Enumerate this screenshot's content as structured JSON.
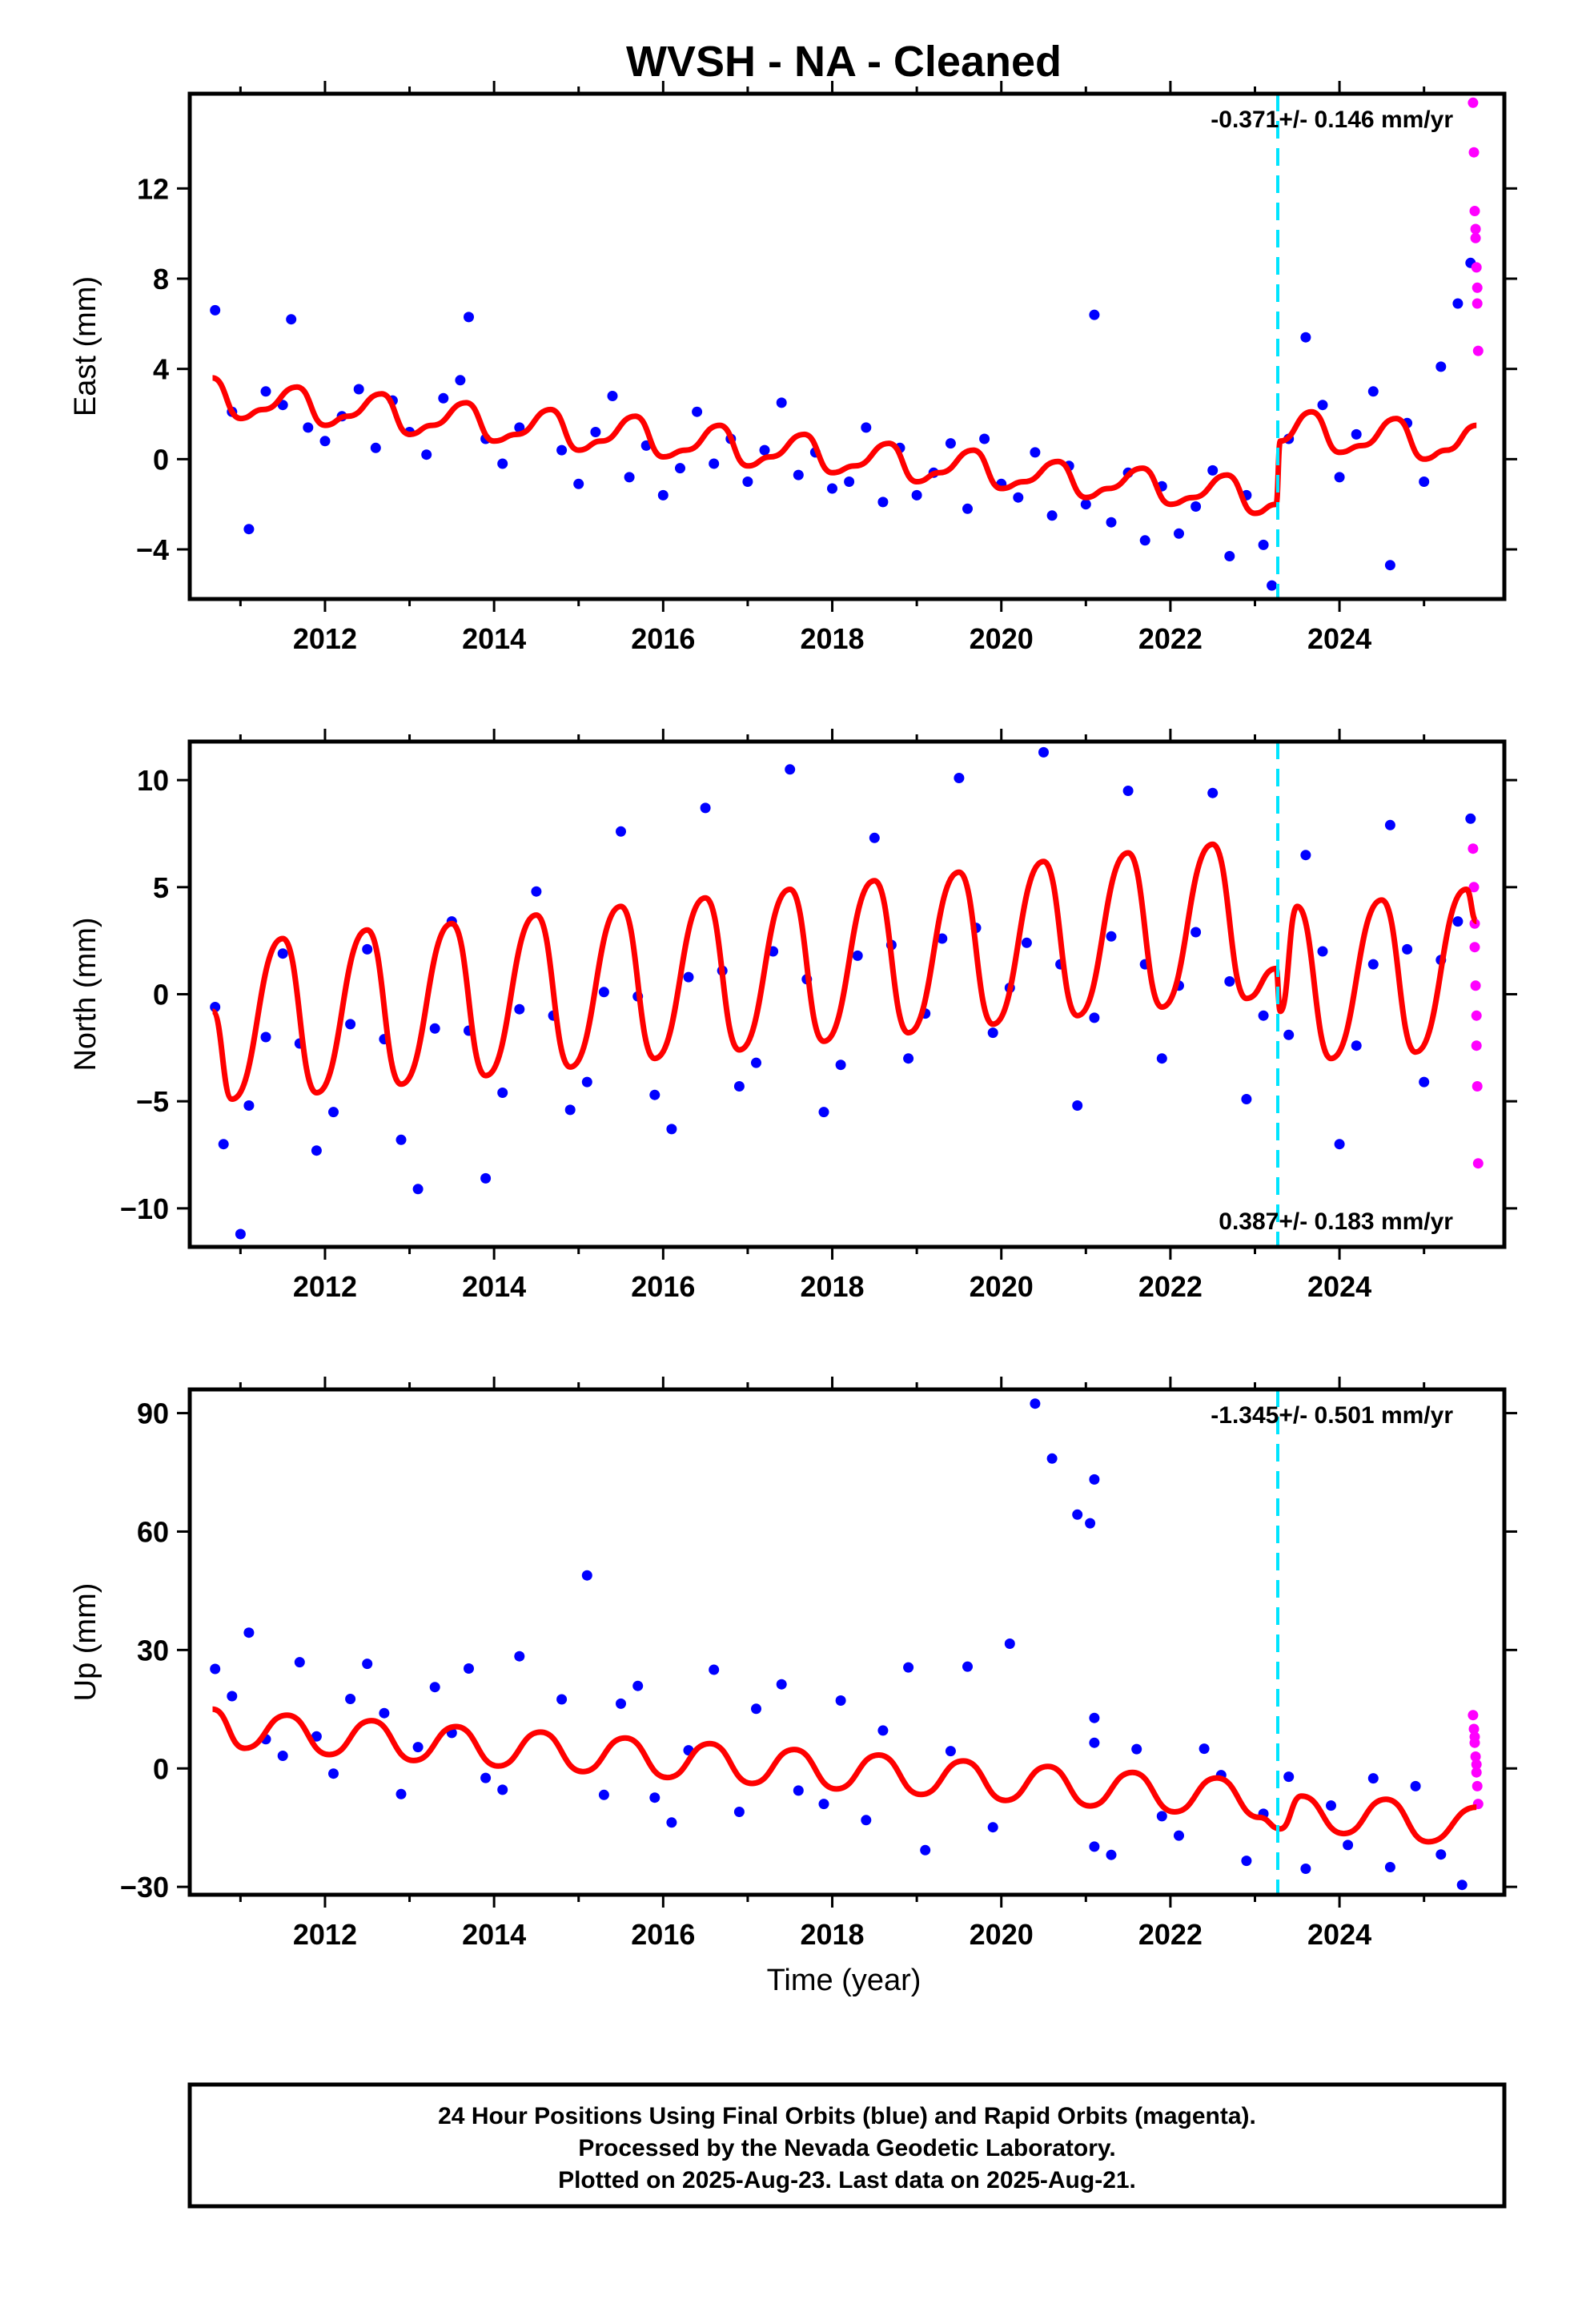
{
  "title": "WVSH  - NA - Cleaned",
  "colors": {
    "final_orbits": "#0000ff",
    "rapid_orbits": "#ff00ff",
    "model_fit": "#ff0000",
    "offset_marker": "#00e5ff"
  },
  "x_axis": {
    "label": "Time (year)",
    "range": [
      2010.4,
      2025.95
    ],
    "ticks": [
      "2012",
      "2014",
      "2016",
      "2018",
      "2020",
      "2022",
      "2024"
    ]
  },
  "note": {
    "lines": [
      "24 Hour Positions Using Final Orbits (blue) and Rapid Orbits (magenta).",
      "Processed by the Nevada Geodetic Laboratory.",
      "Plotted on 2025-Aug-23. Last data on 2025-Aug-21."
    ]
  },
  "chart_data": [
    {
      "type": "scatter",
      "name": "east",
      "ylabel": "East (mm)",
      "ylim": [
        -6.2,
        16.2
      ],
      "yticks": [
        "−4",
        "0",
        "4",
        "8",
        "12"
      ],
      "rate_text": "-0.371+/- 0.146 mm/yr",
      "rate_position": "top-right",
      "offset_line_year": 2023.27,
      "series": [
        {
          "name": "fit",
          "style": "line",
          "x": [
            2010.67,
            2011.0,
            2011.27,
            2011.67,
            2012.0,
            2012.27,
            2012.67,
            2013.0,
            2013.27,
            2013.67,
            2014.0,
            2014.27,
            2014.67,
            2015.0,
            2015.27,
            2015.67,
            2016.0,
            2016.27,
            2016.67,
            2017.0,
            2017.27,
            2017.67,
            2018.0,
            2018.27,
            2018.67,
            2019.0,
            2019.27,
            2019.67,
            2020.0,
            2020.27,
            2020.67,
            2021.0,
            2021.27,
            2021.67,
            2022.0,
            2022.27,
            2022.67,
            2023.0,
            2023.25,
            2023.3,
            2023.67,
            2024.0,
            2024.27,
            2024.67,
            2025.0,
            2025.27,
            2025.62
          ],
          "y": [
            3.6,
            1.8,
            2.2,
            3.2,
            1.5,
            1.9,
            2.9,
            1.1,
            1.5,
            2.5,
            0.8,
            1.1,
            2.2,
            0.4,
            0.8,
            1.9,
            0.1,
            0.4,
            1.5,
            -0.3,
            0.1,
            1.1,
            -0.6,
            -0.3,
            0.7,
            -1.0,
            -0.6,
            0.4,
            -1.3,
            -1.0,
            -0.1,
            -1.7,
            -1.3,
            -0.4,
            -2.0,
            -1.7,
            -0.7,
            -2.4,
            -2.0,
            0.8,
            2.1,
            0.3,
            0.6,
            1.8,
            0.0,
            0.4,
            1.5
          ]
        },
        {
          "name": "final",
          "style": "points",
          "x": [
            2010.7,
            2010.9,
            2011.1,
            2011.3,
            2011.5,
            2011.6,
            2011.8,
            2012.0,
            2012.2,
            2012.4,
            2012.6,
            2012.8,
            2013.0,
            2013.2,
            2013.4,
            2013.6,
            2013.7,
            2013.9,
            2014.1,
            2014.3,
            2014.8,
            2015.0,
            2015.2,
            2015.4,
            2015.6,
            2015.8,
            2016.0,
            2016.2,
            2016.4,
            2016.6,
            2016.8,
            2017.0,
            2017.2,
            2017.4,
            2017.6,
            2017.8,
            2018.0,
            2018.2,
            2018.4,
            2018.6,
            2018.8,
            2019.0,
            2019.2,
            2019.4,
            2019.6,
            2019.8,
            2020.0,
            2020.2,
            2020.4,
            2020.6,
            2020.8,
            2021.0,
            2021.1,
            2021.3,
            2021.5,
            2021.7,
            2021.9,
            2022.1,
            2022.3,
            2022.5,
            2022.7,
            2022.9,
            2023.1,
            2023.2,
            2023.4,
            2023.6,
            2023.8,
            2024.0,
            2024.2,
            2024.4,
            2024.6,
            2024.8,
            2025.0,
            2025.2,
            2025.4,
            2025.55
          ],
          "y": [
            6.6,
            2.1,
            -3.1,
            3.0,
            2.4,
            6.2,
            1.4,
            0.8,
            1.9,
            3.1,
            0.5,
            2.6,
            1.2,
            0.2,
            2.7,
            3.5,
            6.3,
            0.9,
            -0.2,
            1.4,
            0.4,
            -1.1,
            1.2,
            2.8,
            -0.8,
            0.6,
            -1.6,
            -0.4,
            2.1,
            -0.2,
            0.9,
            -1.0,
            0.4,
            2.5,
            -0.7,
            0.3,
            -1.3,
            -1.0,
            1.4,
            -1.9,
            0.5,
            -1.6,
            -0.6,
            0.7,
            -2.2,
            0.9,
            -1.1,
            -1.7,
            0.3,
            -2.5,
            -0.3,
            -2.0,
            6.4,
            -2.8,
            -0.6,
            -3.6,
            -1.2,
            -3.3,
            -2.1,
            -0.5,
            -4.3,
            -1.6,
            -3.8,
            -5.6,
            0.9,
            5.4,
            2.4,
            -0.8,
            1.1,
            3.0,
            -4.7,
            1.6,
            -1.0,
            4.1,
            6.9,
            8.7
          ]
        },
        {
          "name": "rapid",
          "style": "points",
          "x": [
            2025.58,
            2025.59,
            2025.6,
            2025.61,
            2025.62,
            2025.63,
            2025.64,
            2025.61,
            2025.63
          ],
          "y": [
            15.8,
            13.6,
            11.0,
            9.8,
            8.5,
            7.6,
            4.8,
            10.2,
            6.9
          ]
        }
      ]
    },
    {
      "type": "scatter",
      "name": "north",
      "ylabel": "North (mm)",
      "ylim": [
        -11.8,
        11.8
      ],
      "yticks": [
        "10",
        "5",
        "0",
        "−5",
        "−10"
      ],
      "rate_text": "0.387+/- 0.183 mm/yr",
      "rate_position": "bottom-right",
      "offset_line_year": 2023.27,
      "series": [
        {
          "name": "fit",
          "style": "line",
          "x": [
            2010.67,
            2010.9,
            2011.5,
            2011.9,
            2012.5,
            2012.9,
            2013.5,
            2013.9,
            2014.5,
            2014.9,
            2015.5,
            2015.9,
            2016.5,
            2016.9,
            2017.5,
            2017.9,
            2018.5,
            2018.9,
            2019.5,
            2019.9,
            2020.5,
            2020.9,
            2021.5,
            2021.9,
            2022.5,
            2022.9,
            2023.25,
            2023.3,
            2023.5,
            2023.9,
            2024.5,
            2024.9,
            2025.5,
            2025.62
          ],
          "y": [
            -0.8,
            -4.9,
            2.6,
            -4.6,
            3.0,
            -4.2,
            3.3,
            -3.8,
            3.7,
            -3.4,
            4.1,
            -3.0,
            4.5,
            -2.6,
            4.9,
            -2.2,
            5.3,
            -1.8,
            5.7,
            -1.4,
            6.2,
            -1.0,
            6.6,
            -0.6,
            7.0,
            -0.2,
            1.2,
            -0.8,
            4.1,
            -3.0,
            4.4,
            -2.7,
            4.9,
            3.4
          ]
        },
        {
          "name": "final",
          "style": "points",
          "x": [
            2010.7,
            2010.8,
            2011.0,
            2011.1,
            2011.3,
            2011.5,
            2011.7,
            2011.9,
            2012.1,
            2012.3,
            2012.5,
            2012.7,
            2012.9,
            2013.1,
            2013.3,
            2013.5,
            2013.7,
            2013.9,
            2014.1,
            2014.3,
            2014.5,
            2014.7,
            2014.9,
            2015.1,
            2015.3,
            2015.5,
            2015.7,
            2015.9,
            2016.1,
            2016.3,
            2016.5,
            2016.7,
            2016.9,
            2017.1,
            2017.3,
            2017.5,
            2017.7,
            2017.9,
            2018.1,
            2018.3,
            2018.5,
            2018.7,
            2018.9,
            2019.1,
            2019.3,
            2019.5,
            2019.7,
            2019.9,
            2020.1,
            2020.3,
            2020.5,
            2020.7,
            2020.9,
            2021.1,
            2021.3,
            2021.5,
            2021.7,
            2021.9,
            2022.1,
            2022.3,
            2022.5,
            2022.7,
            2022.9,
            2023.1,
            2023.4,
            2023.6,
            2023.8,
            2024.0,
            2024.2,
            2024.4,
            2024.6,
            2024.8,
            2025.0,
            2025.2,
            2025.4,
            2025.55
          ],
          "y": [
            -0.6,
            -7.0,
            -11.2,
            -5.2,
            -2.0,
            1.9,
            -2.3,
            -7.3,
            -5.5,
            -1.4,
            2.1,
            -2.1,
            -6.8,
            -9.1,
            -1.6,
            3.4,
            -1.7,
            -8.6,
            -4.6,
            -0.7,
            4.8,
            -1.0,
            -5.4,
            -4.1,
            0.1,
            7.6,
            -0.1,
            -4.7,
            -6.3,
            0.8,
            8.7,
            1.1,
            -4.3,
            -3.2,
            2.0,
            10.5,
            0.7,
            -5.5,
            -3.3,
            1.8,
            7.3,
            2.3,
            -3.0,
            -0.9,
            2.6,
            10.1,
            3.1,
            -1.8,
            0.3,
            2.4,
            11.3,
            1.4,
            -5.2,
            -1.1,
            2.7,
            9.5,
            1.4,
            -3.0,
            0.4,
            2.9,
            9.4,
            0.6,
            -4.9,
            -1.0,
            -1.9,
            6.5,
            2.0,
            -7.0,
            -2.4,
            1.4,
            7.9,
            2.1,
            -4.1,
            1.6,
            3.4,
            8.2
          ]
        },
        {
          "name": "rapid",
          "style": "points",
          "x": [
            2025.58,
            2025.59,
            2025.6,
            2025.61,
            2025.62,
            2025.63,
            2025.64,
            2025.6,
            2025.62
          ],
          "y": [
            6.8,
            5.0,
            2.2,
            0.4,
            -2.4,
            -4.3,
            -7.9,
            3.3,
            -1.0
          ]
        }
      ]
    },
    {
      "type": "scatter",
      "name": "up",
      "ylabel": "Up (mm)",
      "ylim": [
        -32,
        96
      ],
      "yticks": [
        "90",
        "60",
        "30",
        "0",
        "−30"
      ],
      "rate_text": "-1.345+/- 0.501 mm/yr",
      "rate_position": "top-right",
      "offset_line_year": 2023.27,
      "series": [
        {
          "name": "fit",
          "style": "line",
          "x": [
            2010.67,
            2011.05,
            2011.55,
            2012.05,
            2012.55,
            2013.05,
            2013.55,
            2014.05,
            2014.55,
            2015.05,
            2015.55,
            2016.05,
            2016.55,
            2017.05,
            2017.55,
            2018.05,
            2018.55,
            2019.05,
            2019.55,
            2020.05,
            2020.55,
            2021.05,
            2021.55,
            2022.05,
            2022.55,
            2023.05,
            2023.3,
            2023.55,
            2024.05,
            2024.55,
            2025.05,
            2025.62
          ],
          "y": [
            15.0,
            5.1,
            13.5,
            3.5,
            12.1,
            2.0,
            10.6,
            0.6,
            9.2,
            -0.8,
            7.7,
            -2.3,
            6.3,
            -3.8,
            4.8,
            -5.2,
            3.4,
            -6.6,
            1.9,
            -8.1,
            0.5,
            -9.5,
            -1.0,
            -11.0,
            -2.4,
            -12.4,
            -15.3,
            -7.0,
            -16.5,
            -7.8,
            -18.6,
            -9.8
          ]
        },
        {
          "name": "final",
          "style": "points",
          "x": [
            2010.7,
            2010.9,
            2011.1,
            2011.3,
            2011.5,
            2011.7,
            2011.9,
            2012.1,
            2012.3,
            2012.5,
            2012.7,
            2012.9,
            2013.1,
            2013.3,
            2013.5,
            2013.7,
            2013.9,
            2014.1,
            2014.3,
            2014.8,
            2015.1,
            2015.3,
            2015.5,
            2015.7,
            2015.9,
            2016.1,
            2016.3,
            2016.6,
            2016.9,
            2017.1,
            2017.4,
            2017.6,
            2017.9,
            2018.1,
            2018.4,
            2018.6,
            2018.9,
            2019.1,
            2019.4,
            2019.6,
            2019.9,
            2020.1,
            2020.4,
            2020.6,
            2020.9,
            2021.05,
            2021.1,
            2021.1,
            2021.1,
            2021.1,
            2021.3,
            2021.6,
            2021.9,
            2022.1,
            2022.4,
            2022.6,
            2022.9,
            2023.1,
            2023.4,
            2023.6,
            2023.9,
            2024.1,
            2024.4,
            2024.6,
            2024.9,
            2025.2,
            2025.45
          ],
          "y": [
            25.2,
            18.3,
            34.4,
            7.4,
            3.2,
            26.9,
            8.1,
            -1.3,
            17.6,
            26.5,
            14.0,
            -6.5,
            5.4,
            20.6,
            9.0,
            25.3,
            -2.4,
            -5.4,
            28.4,
            17.5,
            48.9,
            -6.7,
            16.4,
            20.9,
            -7.4,
            -13.7,
            4.6,
            25.0,
            -11.0,
            15.1,
            21.3,
            -5.6,
            -9.0,
            17.2,
            -13.1,
            9.6,
            25.6,
            -20.7,
            4.4,
            25.8,
            -14.9,
            31.6,
            92.4,
            78.5,
            64.3,
            62.1,
            73.2,
            -19.8,
            6.5,
            12.8,
            -21.9,
            4.9,
            -12.1,
            -17.0,
            5.0,
            -1.7,
            -23.4,
            -11.5,
            -2.1,
            -25.4,
            -9.4,
            -19.4,
            -2.5,
            -25.0,
            -4.5,
            -21.8,
            -29.5
          ]
        },
        {
          "name": "rapid",
          "style": "points",
          "x": [
            2025.58,
            2025.59,
            2025.6,
            2025.61,
            2025.62,
            2025.63,
            2025.64,
            2025.6,
            2025.62
          ],
          "y": [
            13.5,
            10.0,
            6.5,
            3.0,
            -1.0,
            -4.5,
            -9.0,
            8.0,
            1.0
          ]
        }
      ]
    }
  ]
}
